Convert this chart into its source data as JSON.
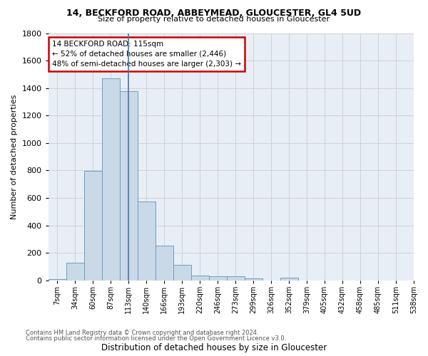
{
  "title1": "14, BECKFORD ROAD, ABBEYMEAD, GLOUCESTER, GL4 5UD",
  "title2": "Size of property relative to detached houses in Gloucester",
  "xlabel": "Distribution of detached houses by size in Gloucester",
  "ylabel": "Number of detached properties",
  "bar_color": "#c9d9e8",
  "bar_edge_color": "#6a9fc0",
  "grid_color": "#cccccc",
  "bg_color": "#e8eef5",
  "annotation_line_color": "#4477aa",
  "annotation_box_color": "#cc0000",
  "annotation_text": "14 BECKFORD ROAD: 115sqm\n← 52% of detached houses are smaller (2,446)\n48% of semi-detached houses are larger (2,303) →",
  "bin_labels": [
    "7sqm",
    "34sqm",
    "60sqm",
    "87sqm",
    "113sqm",
    "140sqm",
    "166sqm",
    "193sqm",
    "220sqm",
    "246sqm",
    "273sqm",
    "299sqm",
    "326sqm",
    "352sqm",
    "379sqm",
    "405sqm",
    "432sqm",
    "458sqm",
    "485sqm",
    "511sqm",
    "538sqm"
  ],
  "bar_heights": [
    10,
    130,
    795,
    1470,
    1375,
    575,
    250,
    110,
    35,
    28,
    28,
    15,
    0,
    18,
    0,
    0,
    0,
    0,
    0,
    0
  ],
  "property_bin_index": 4,
  "ylim": [
    0,
    1800
  ],
  "yticks": [
    0,
    200,
    400,
    600,
    800,
    1000,
    1200,
    1400,
    1600,
    1800
  ],
  "footnote1": "Contains HM Land Registry data © Crown copyright and database right 2024.",
  "footnote2": "Contains public sector information licensed under the Open Government Licence v3.0."
}
